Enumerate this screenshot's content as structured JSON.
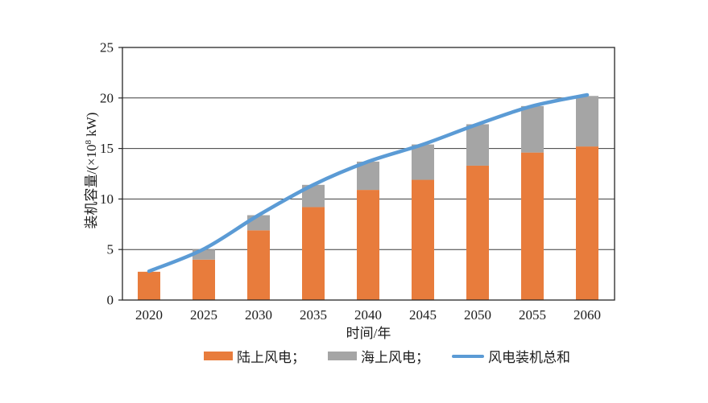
{
  "figure": {
    "background": "#ffffff",
    "text_color": "#1c1c1c",
    "grid_color": "#3d3d3d",
    "border_color": "#262626"
  },
  "axes": {
    "xlabel": "时间/年",
    "ylabel_full": "装机容量/(×10⁸ kW)",
    "ylabel_parts": {
      "pre": "装机容量/(×10",
      "sup": "8",
      "post": " kW)"
    }
  },
  "legend": {
    "items": [
      {
        "name": "onshore",
        "label": "陆上风电；",
        "swatch": "orange-rect",
        "color": "#E87C3C"
      },
      {
        "name": "offshore",
        "label": "海上风电；",
        "swatch": "gray-rect",
        "color": "#A5A5A5"
      },
      {
        "name": "total-line",
        "label": "风电装机总和",
        "swatch": "blue-line",
        "color": "#5B9BD5"
      }
    ]
  },
  "chart_data": {
    "type": "bar",
    "stacked": true,
    "title": "",
    "xlabel": "时间/年",
    "ylabel": "装机容量/(×10⁸ kW)",
    "ylim": [
      0,
      25
    ],
    "yticks": [
      0,
      5,
      10,
      15,
      20,
      25
    ],
    "grid": true,
    "legend_position": "bottom",
    "categories": [
      "2020",
      "2025",
      "2030",
      "2035",
      "2040",
      "2045",
      "2050",
      "2055",
      "2060"
    ],
    "series": [
      {
        "name": "陆上风电",
        "render": "bar",
        "color": "#E87C3C",
        "values": [
          2.8,
          4.0,
          6.9,
          9.2,
          10.9,
          11.9,
          13.3,
          14.6,
          15.2
        ]
      },
      {
        "name": "海上风电",
        "render": "bar",
        "color": "#A5A5A5",
        "values": [
          0.0,
          1.0,
          1.5,
          2.2,
          2.8,
          3.5,
          4.1,
          4.6,
          5.0
        ]
      },
      {
        "name": "风电装机总和",
        "render": "line",
        "color": "#5B9BD5",
        "values": [
          2.85,
          5.05,
          8.4,
          11.4,
          13.7,
          15.4,
          17.4,
          19.2,
          20.3
        ]
      }
    ]
  }
}
